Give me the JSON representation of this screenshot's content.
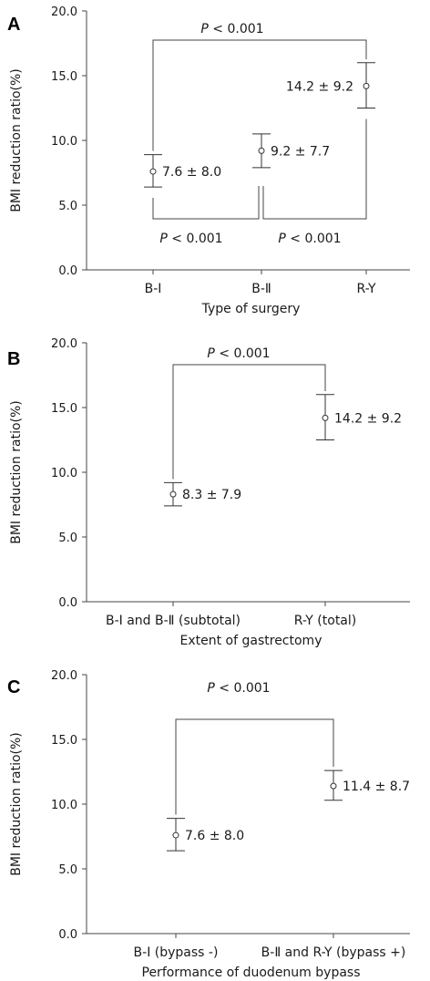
{
  "chart_data": [
    {
      "panel": "A",
      "type": "scatter",
      "ylabel": "BMI reduction ratio(%)",
      "xlabel": "Type of surgery",
      "yticks": [
        "0.0",
        "5.0",
        "10.0",
        "15.0",
        "20.0"
      ],
      "ylim": [
        0,
        20
      ],
      "categories": [
        "B-Ⅰ",
        "B-Ⅱ",
        "R-Y"
      ],
      "points": [
        {
          "category": "B-Ⅰ",
          "mean": 7.6,
          "ci_low": 6.4,
          "ci_high": 8.9,
          "label": "7.6 ± 8.0"
        },
        {
          "category": "B-Ⅱ",
          "mean": 9.2,
          "ci_low": 7.9,
          "ci_high": 10.5,
          "label": "9.2 ± 7.7"
        },
        {
          "category": "R-Y",
          "mean": 14.2,
          "ci_low": 12.5,
          "ci_high": 16.0,
          "label": "14.2 ± 9.2"
        }
      ],
      "significance": [
        {
          "from": "B-Ⅰ",
          "to": "R-Y",
          "label": "P < 0.001"
        },
        {
          "from": "B-Ⅰ",
          "to": "B-Ⅱ",
          "label": "P < 0.001"
        },
        {
          "from": "B-Ⅱ",
          "to": "R-Y",
          "label": "P < 0.001"
        }
      ]
    },
    {
      "panel": "B",
      "type": "scatter",
      "ylabel": "BMI reduction ratio(%)",
      "xlabel": "Extent of gastrectomy",
      "yticks": [
        "0.0",
        "5.0",
        "10.0",
        "15.0",
        "20.0"
      ],
      "ylim": [
        0,
        20
      ],
      "categories": [
        "B-Ⅰ and B-Ⅱ (subtotal)",
        "R-Y (total)"
      ],
      "points": [
        {
          "category": "B-Ⅰ and B-Ⅱ (subtotal)",
          "mean": 8.3,
          "ci_low": 7.4,
          "ci_high": 9.2,
          "label": "8.3 ± 7.9"
        },
        {
          "category": "R-Y (total)",
          "mean": 14.2,
          "ci_low": 12.5,
          "ci_high": 16.0,
          "label": "14.2 ± 9.2"
        }
      ],
      "significance": [
        {
          "from": "B-Ⅰ and B-Ⅱ (subtotal)",
          "to": "R-Y (total)",
          "label": "P < 0.001"
        }
      ]
    },
    {
      "panel": "C",
      "type": "scatter",
      "ylabel": "BMI reduction ratio(%)",
      "xlabel": "Performance of duodenum bypass",
      "yticks": [
        "0.0",
        "5.0",
        "10.0",
        "15.0",
        "20.0"
      ],
      "ylim": [
        0,
        20
      ],
      "categories": [
        "B-Ⅰ (bypass -)",
        "B-Ⅱ and R-Y (bypass +)"
      ],
      "points": [
        {
          "category": "B-Ⅰ (bypass -)",
          "mean": 7.6,
          "ci_low": 6.4,
          "ci_high": 8.9,
          "label": "7.6 ± 8.0"
        },
        {
          "category": "B-Ⅱ and R-Y (bypass +)",
          "mean": 11.4,
          "ci_low": 10.3,
          "ci_high": 12.6,
          "label": "11.4 ± 8.7"
        }
      ],
      "significance": [
        {
          "from": "B-Ⅰ (bypass -)",
          "to": "B-Ⅱ and R-Y (bypass +)",
          "label": "P < 0.001"
        }
      ]
    }
  ]
}
